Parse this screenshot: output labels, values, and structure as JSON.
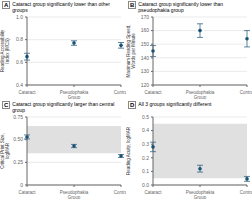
{
  "chart_data": [
    {
      "type": "scatter",
      "title": "Cataract group significantly lower than other groups",
      "annotations": [
        "A"
      ],
      "y_label": "Reading Accessibility Index (MCS)",
      "categories": [
        "Cataract",
        "Pseudophakia\nGroup",
        "Control"
      ],
      "values": [
        0.65,
        0.77,
        0.75
      ],
      "errors": [
        0.03,
        0.02,
        0.025
      ],
      "color": "#1a5276",
      "ylim": [
        0.4,
        1.0
      ],
      "yticks": [
        0.4,
        0.6,
        0.8,
        {
          "value": 1.0,
          "label": "1.0"
        }
      ],
      "grid": true
    },
    {
      "type": "scatter",
      "title": "Cataract group significantly lower than pseudophakia group",
      "annotations": [
        "B"
      ],
      "y_label": "Maximum Reading Speed,\nWords per Minute",
      "categories": [
        "Cataract",
        "Pseudophakia\nGroup",
        "Control"
      ],
      "values": [
        145,
        160,
        154
      ],
      "errors": [
        4,
        5,
        6
      ],
      "color": "#1a5276",
      "ylim": [
        120,
        170
      ],
      "yticks": [
        120,
        130,
        140,
        150,
        160,
        170
      ],
      "grid": true
    },
    {
      "type": "scatter",
      "title": "Cataract group significantly larger than central group",
      "annotations": [
        "C"
      ],
      "y_label": "Critical Print Size, logMAR",
      "categories": [
        "Cataract",
        "Pseudophakia\nGroup",
        "Control"
      ],
      "values": [
        0.53,
        0.43,
        0.32
      ],
      "errors": [
        0.022,
        0.018,
        0.016
      ],
      "color": "#1a5276",
      "ylim": [
        0.0,
        0.75
      ],
      "yticks": [
        0,
        0.25,
        {
          "value": 0.5,
          "label": "0.50"
        },
        0.75
      ],
      "grid": true,
      "shade": {
        "range": [
          0.35,
          0.65
        ],
        "color": "#e0e0e0"
      }
    },
    {
      "type": "scatter",
      "title": "All 3 groups significantly different",
      "annotations": [
        "D"
      ],
      "y_label": "Reading Acuity, logMAR",
      "categories": [
        "Cataract",
        "Pseudophakia\nGroup",
        "Control"
      ],
      "values": [
        0.28,
        0.12,
        0.045
      ],
      "errors": [
        0.035,
        0.025,
        0.018
      ],
      "color": "#1a5276",
      "ylim": [
        0.0,
        0.5
      ],
      "yticks": [
        {
          "value": 0.0,
          "label": "0.0"
        },
        0.1,
        0.2,
        0.3,
        0.4,
        0.5
      ],
      "grid": true,
      "shade": {
        "range": [
          0.05,
          0.45
        ],
        "color": "#e0e0e0"
      }
    }
  ]
}
